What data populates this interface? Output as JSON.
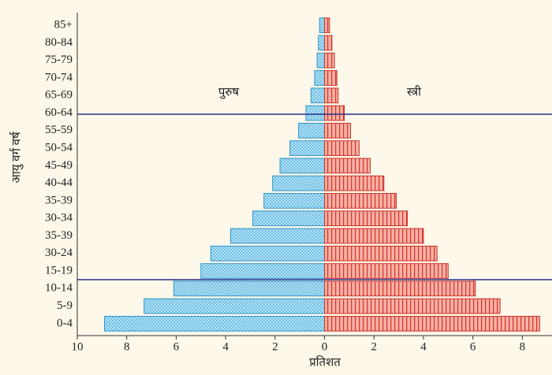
{
  "chart_data": {
    "type": "bar",
    "orientation": "horizontal",
    "ylabel": "आयु वर्ग वर्ष",
    "xlabel": "प्रतिशत",
    "categories": [
      "85+",
      "80-84",
      "75-79",
      "70-74",
      "65-69",
      "60-64",
      "55-59",
      "50-54",
      "45-49",
      "40-44",
      "35-39",
      "30-34",
      "35-39",
      "30-24",
      "15-19",
      "10-14",
      "5-9",
      "0-4"
    ],
    "series": [
      {
        "name": "पुरुष",
        "color": "#a6d8f0",
        "values": [
          -0.2,
          -0.25,
          -0.3,
          -0.4,
          -0.55,
          -0.75,
          -1.05,
          -1.4,
          -1.8,
          -2.1,
          -2.45,
          -2.9,
          -3.8,
          -4.6,
          -5.0,
          -6.1,
          -7.3,
          -8.9
        ]
      },
      {
        "name": "स्त्री",
        "color": "#f5a597",
        "values": [
          0.2,
          0.3,
          0.4,
          0.5,
          0.55,
          0.8,
          1.05,
          1.4,
          1.85,
          2.4,
          2.9,
          3.35,
          4.0,
          4.55,
          5.0,
          6.1,
          7.1,
          8.7
        ]
      }
    ],
    "xlim": [
      -10,
      9.2
    ],
    "xticks": [
      {
        "value": -10,
        "label": "10"
      },
      {
        "value": -8,
        "label": "8"
      },
      {
        "value": -6,
        "label": "6"
      },
      {
        "value": -4,
        "label": "4"
      },
      {
        "value": -2,
        "label": "2"
      },
      0,
      2,
      4,
      6,
      8
    ]
  }
}
